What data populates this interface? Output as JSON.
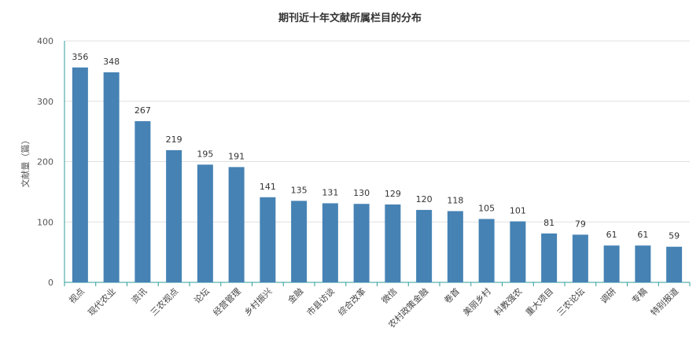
{
  "chart_data": {
    "type": "bar",
    "title": "期刊近十年文献所属栏目的分布",
    "ylabel": "文献量（篇）",
    "xlabel": "",
    "ylim": [
      0,
      400
    ],
    "yticks": [
      0,
      100,
      200,
      300,
      400
    ],
    "grid": true,
    "bar_color": "#4682b4",
    "categories": [
      "视点",
      "现代农业",
      "资讯",
      "三农视点",
      "论坛",
      "经营管理",
      "乡村振兴",
      "金融",
      "市县访谈",
      "综合改革",
      "微信",
      "农村政策金融",
      "卷首",
      "美丽乡村",
      "科教强农",
      "重大项目",
      "三农论坛",
      "调研",
      "专稿",
      "特别报道"
    ],
    "values": [
      356,
      348,
      267,
      219,
      195,
      191,
      141,
      135,
      131,
      130,
      129,
      120,
      118,
      105,
      101,
      81,
      79,
      61,
      61,
      59
    ]
  }
}
